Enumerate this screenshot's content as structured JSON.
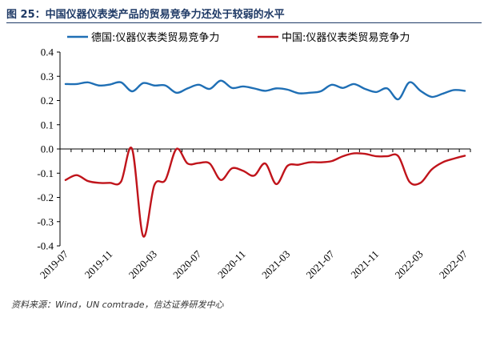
{
  "figure": {
    "title": "图 25：中国仪器仪表类产品的贸易竞争力还处于较弱的水平",
    "source": "资料来源：Wind，UN comtrade，信达证券研发中心"
  },
  "chart_data": {
    "type": "line",
    "title": "图 25：中国仪器仪表类产品的贸易竞争力还处于较弱的水平",
    "xlabel": "",
    "ylabel": "",
    "ylim": [
      -0.4,
      0.4
    ],
    "yticks": [
      "0.4",
      "0.3",
      "0.2",
      "0.1",
      "0.0",
      "-0.1",
      "-0.2",
      "-0.3",
      "-0.4"
    ],
    "x_tick_labels": [
      "2019-07",
      "2019-11",
      "2020-03",
      "2020-07",
      "2020-11",
      "2021-03",
      "2021-07",
      "2021-11",
      "2022-03",
      "2022-07"
    ],
    "x": [
      "2019-07",
      "2019-08",
      "2019-09",
      "2019-10",
      "2019-11",
      "2019-12",
      "2020-01",
      "2020-02",
      "2020-03",
      "2020-04",
      "2020-05",
      "2020-06",
      "2020-07",
      "2020-08",
      "2020-09",
      "2020-10",
      "2020-11",
      "2020-12",
      "2021-01",
      "2021-02",
      "2021-03",
      "2021-04",
      "2021-05",
      "2021-06",
      "2021-07",
      "2021-08",
      "2021-09",
      "2021-10",
      "2021-11",
      "2021-12",
      "2022-01",
      "2022-02",
      "2022-03",
      "2022-04",
      "2022-05",
      "2022-06",
      "2022-07"
    ],
    "legend_position": "top",
    "series": [
      {
        "name": "德国:仪器仪表类贸易竞争力",
        "color": "#1f6fb5",
        "values": [
          0.268,
          0.268,
          0.275,
          0.262,
          0.266,
          0.275,
          0.238,
          0.272,
          0.262,
          0.262,
          0.232,
          0.25,
          0.265,
          0.248,
          0.282,
          0.252,
          0.258,
          0.25,
          0.24,
          0.25,
          0.245,
          0.23,
          0.232,
          0.238,
          0.265,
          0.252,
          0.268,
          0.248,
          0.235,
          0.25,
          0.205,
          0.275,
          0.24,
          0.215,
          0.228,
          0.243,
          0.24
        ]
      },
      {
        "name": "中国:仪器仪表类贸易竞争力",
        "color": "#c0141b",
        "values": [
          -0.128,
          -0.108,
          -0.132,
          -0.14,
          -0.14,
          -0.135,
          0.0,
          -0.36,
          -0.15,
          -0.128,
          0.0,
          -0.06,
          -0.058,
          -0.06,
          -0.128,
          -0.08,
          -0.09,
          -0.11,
          -0.06,
          -0.145,
          -0.07,
          -0.065,
          -0.055,
          -0.055,
          -0.05,
          -0.03,
          -0.018,
          -0.02,
          -0.03,
          -0.03,
          -0.03,
          -0.135,
          -0.14,
          -0.085,
          -0.055,
          -0.04,
          -0.028
        ]
      }
    ]
  }
}
